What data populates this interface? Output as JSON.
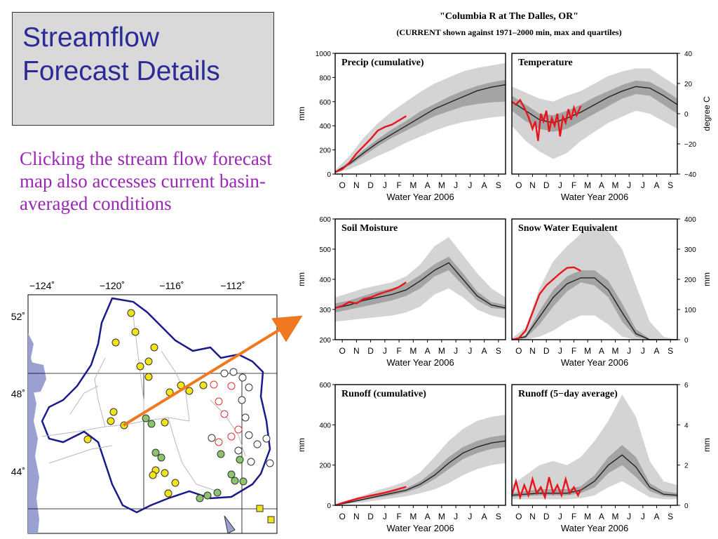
{
  "slide": {
    "title_line1": "Streamflow",
    "title_line2": "Forecast Details",
    "description": "Clicking the stream flow forecast map also accesses current basin-averaged conditions",
    "title_color": "#2b2b95",
    "description_color": "#9b26b6",
    "arrow_color": "#f07820"
  },
  "map": {
    "lon_labels": [
      "−124˚",
      "−120˚",
      "−116˚",
      "−112˚"
    ],
    "lat_labels": [
      "52˚",
      "48˚",
      "44˚"
    ],
    "marker_colors": {
      "yellow": "#f2e418",
      "green": "#8cc46c",
      "red_outline": "#e03030",
      "white": "#ffffff"
    },
    "water_color": "#9aa0d2"
  },
  "figure": {
    "title": "\"Columbia R at The Dalles, OR\"",
    "subtitle": "(CURRENT shown against 1971–2000 min, max and quartiles)",
    "xlabel": "Water Year 2006"
  },
  "chart_data": [
    {
      "type": "area",
      "title": "Precip (cumulative)",
      "ylabel": "mm",
      "ylim": [
        0,
        1000
      ],
      "yticks": [
        0,
        200,
        400,
        600,
        800,
        1000
      ],
      "x_categories": [
        "O",
        "N",
        "D",
        "J",
        "F",
        "M",
        "A",
        "M",
        "J",
        "J",
        "A",
        "S"
      ],
      "xlabel": "Water Year 2006",
      "x_month": [
        0,
        1,
        2,
        3,
        4,
        5,
        6,
        7,
        8,
        9,
        10,
        11,
        12
      ],
      "min": [
        10,
        40,
        90,
        150,
        200,
        260,
        310,
        360,
        400,
        430,
        450,
        470,
        480
      ],
      "q25": [
        15,
        70,
        150,
        230,
        300,
        360,
        420,
        480,
        520,
        560,
        580,
        595,
        600
      ],
      "median": [
        18,
        85,
        175,
        260,
        330,
        400,
        470,
        540,
        590,
        640,
        690,
        720,
        740
      ],
      "q75": [
        20,
        100,
        200,
        290,
        370,
        440,
        520,
        580,
        640,
        690,
        730,
        760,
        780
      ],
      "max": [
        30,
        150,
        300,
        420,
        520,
        600,
        680,
        750,
        800,
        850,
        880,
        900,
        920
      ],
      "current_x": [
        0,
        0.5,
        1,
        1.5,
        2,
        2.5,
        3,
        3.5,
        4,
        4.5,
        5
      ],
      "current": [
        15,
        40,
        95,
        170,
        230,
        290,
        360,
        390,
        410,
        445,
        480
      ]
    },
    {
      "type": "area",
      "title": "Temperature",
      "ylabel": "degree C",
      "ylim": [
        -40,
        40
      ],
      "yticks": [
        -40,
        -20,
        0,
        20,
        40
      ],
      "x_categories": [
        "O",
        "N",
        "D",
        "J",
        "F",
        "M",
        "A",
        "M",
        "J",
        "J",
        "A",
        "S"
      ],
      "xlabel": "Water Year 2006",
      "x_month": [
        0,
        1,
        2,
        3,
        4,
        5,
        6,
        7,
        8,
        9,
        10,
        11,
        12
      ],
      "min": [
        -8,
        -18,
        -25,
        -30,
        -26,
        -18,
        -12,
        -6,
        -2,
        2,
        0,
        -5,
        -10
      ],
      "q25": [
        2,
        -5,
        -10,
        -12,
        -10,
        -5,
        0,
        5,
        10,
        13,
        12,
        6,
        0
      ],
      "median": [
        8,
        2,
        -4,
        -6,
        -3,
        1,
        6,
        11,
        15,
        18,
        17,
        12,
        6
      ],
      "q75": [
        12,
        6,
        0,
        -1,
        2,
        6,
        11,
        15,
        19,
        22,
        21,
        16,
        10
      ],
      "max": [
        18,
        14,
        10,
        8,
        12,
        15,
        20,
        25,
        28,
        30,
        30,
        24,
        18
      ],
      "current_x": [
        0,
        0.3,
        0.6,
        0.9,
        1.2,
        1.5,
        1.7,
        1.9,
        2.1,
        2.3,
        2.5,
        2.7,
        2.9,
        3.1,
        3.3,
        3.5,
        3.7,
        3.9,
        4.1,
        4.3,
        4.5,
        4.7,
        5
      ],
      "current": [
        8,
        6,
        9,
        4,
        -2,
        -10,
        -5,
        -18,
        0,
        -5,
        2,
        -12,
        -3,
        -8,
        0,
        -15,
        -2,
        -6,
        3,
        -4,
        4,
        -1,
        5
      ]
    },
    {
      "type": "area",
      "title": "Soil Moisture",
      "ylabel": "mm",
      "ylim": [
        200,
        600
      ],
      "yticks": [
        200,
        300,
        400,
        500,
        600
      ],
      "x_categories": [
        "O",
        "N",
        "D",
        "J",
        "F",
        "M",
        "A",
        "M",
        "J",
        "J",
        "A",
        "S"
      ],
      "xlabel": "Water Year 2006",
      "x_month": [
        0,
        1,
        2,
        3,
        4,
        5,
        6,
        7,
        8,
        9,
        10,
        11,
        12
      ],
      "min": [
        260,
        265,
        270,
        275,
        280,
        290,
        310,
        350,
        370,
        340,
        300,
        280,
        270
      ],
      "q25": [
        290,
        300,
        310,
        320,
        330,
        345,
        370,
        410,
        430,
        380,
        330,
        305,
        300
      ],
      "median": [
        305,
        315,
        330,
        340,
        350,
        365,
        395,
        430,
        455,
        400,
        345,
        315,
        305
      ],
      "q75": [
        320,
        330,
        345,
        360,
        370,
        385,
        415,
        450,
        475,
        420,
        360,
        325,
        315
      ],
      "max": [
        340,
        355,
        370,
        380,
        390,
        410,
        450,
        510,
        540,
        480,
        420,
        370,
        340
      ],
      "current_x": [
        0,
        0.5,
        1,
        1.5,
        2,
        2.5,
        3,
        3.5,
        4,
        4.5,
        5
      ],
      "current": [
        305,
        312,
        325,
        320,
        335,
        340,
        350,
        358,
        365,
        375,
        390
      ]
    },
    {
      "type": "area",
      "title": "Snow Water Equivalent",
      "ylabel": "mm",
      "ylim": [
        0,
        400
      ],
      "yticks": [
        0,
        100,
        200,
        300,
        400
      ],
      "x_categories": [
        "O",
        "N",
        "D",
        "J",
        "F",
        "M",
        "A",
        "M",
        "J",
        "J",
        "A",
        "S"
      ],
      "xlabel": "Water Year 2006",
      "x_month": [
        0,
        1,
        2,
        3,
        4,
        5,
        6,
        7,
        8,
        9,
        10,
        11,
        12
      ],
      "min": [
        0,
        0,
        10,
        30,
        60,
        80,
        80,
        50,
        10,
        0,
        0,
        0,
        0
      ],
      "q25": [
        0,
        5,
        50,
        110,
        160,
        190,
        180,
        140,
        60,
        10,
        0,
        0,
        0
      ],
      "median": [
        0,
        10,
        75,
        140,
        185,
        205,
        205,
        165,
        90,
        20,
        0,
        0,
        0
      ],
      "q75": [
        0,
        15,
        95,
        165,
        210,
        230,
        230,
        195,
        120,
        35,
        2,
        0,
        0
      ],
      "max": [
        5,
        40,
        170,
        260,
        310,
        350,
        370,
        360,
        300,
        180,
        60,
        10,
        0
      ],
      "current_x": [
        0,
        0.5,
        1,
        1.5,
        2,
        2.5,
        3,
        3.5,
        4,
        4.5,
        5
      ],
      "current": [
        0,
        5,
        30,
        90,
        150,
        180,
        200,
        220,
        238,
        240,
        228
      ]
    },
    {
      "type": "area",
      "title": "Runoff (cumulative)",
      "ylabel": "mm",
      "ylim": [
        0,
        600
      ],
      "yticks": [
        0,
        200,
        400,
        600
      ],
      "x_categories": [
        "O",
        "N",
        "D",
        "J",
        "F",
        "M",
        "A",
        "M",
        "J",
        "J",
        "A",
        "S"
      ],
      "xlabel": "Water Year 2006",
      "x_month": [
        0,
        1,
        2,
        3,
        4,
        5,
        6,
        7,
        8,
        9,
        10,
        11,
        12
      ],
      "min": [
        0,
        8,
        15,
        25,
        35,
        45,
        60,
        80,
        110,
        150,
        180,
        200,
        210
      ],
      "q25": [
        0,
        12,
        25,
        38,
        50,
        65,
        90,
        130,
        180,
        230,
        260,
        280,
        290
      ],
      "median": [
        0,
        15,
        30,
        45,
        60,
        75,
        105,
        150,
        210,
        260,
        290,
        310,
        320
      ],
      "q75": [
        0,
        18,
        35,
        52,
        68,
        85,
        120,
        175,
        240,
        290,
        320,
        340,
        350
      ],
      "max": [
        0,
        25,
        50,
        75,
        95,
        120,
        165,
        240,
        320,
        380,
        420,
        440,
        450
      ],
      "current_x": [
        0,
        0.5,
        1,
        1.5,
        2,
        2.5,
        3,
        3.5,
        4,
        4.5,
        5
      ],
      "current": [
        0,
        12,
        22,
        32,
        40,
        48,
        55,
        63,
        72,
        82,
        92
      ]
    },
    {
      "type": "area",
      "title": "Runoff (5−day average)",
      "ylabel": "mm",
      "ylim": [
        0,
        6
      ],
      "yticks": [
        0,
        2,
        4,
        6
      ],
      "x_categories": [
        "O",
        "N",
        "D",
        "J",
        "F",
        "M",
        "A",
        "M",
        "J",
        "J",
        "A",
        "S"
      ],
      "xlabel": "Water Year 2006",
      "x_month": [
        0,
        1,
        2,
        3,
        4,
        5,
        6,
        7,
        8,
        9,
        10,
        11,
        12
      ],
      "min": [
        0.3,
        0.3,
        0.3,
        0.3,
        0.3,
        0.35,
        0.5,
        0.9,
        1.2,
        0.8,
        0.4,
        0.3,
        0.3
      ],
      "q25": [
        0.4,
        0.45,
        0.5,
        0.5,
        0.5,
        0.6,
        0.9,
        1.6,
        2.0,
        1.4,
        0.7,
        0.45,
        0.4
      ],
      "median": [
        0.5,
        0.55,
        0.6,
        0.6,
        0.6,
        0.75,
        1.2,
        2.0,
        2.5,
        1.9,
        0.9,
        0.55,
        0.5
      ],
      "q75": [
        0.6,
        0.7,
        0.8,
        0.8,
        0.8,
        0.95,
        1.5,
        2.4,
        3.0,
        2.4,
        1.1,
        0.7,
        0.6
      ],
      "max": [
        1.0,
        1.5,
        2.0,
        2.2,
        2.0,
        2.4,
        3.2,
        4.2,
        5.5,
        4.4,
        2.2,
        1.2,
        1.0
      ],
      "current_x": [
        0,
        0.3,
        0.6,
        0.9,
        1.2,
        1.5,
        1.8,
        2.1,
        2.4,
        2.7,
        3.0,
        3.3,
        3.6,
        3.9,
        4.2,
        4.5,
        4.8,
        5.0
      ],
      "current": [
        0.5,
        1.2,
        0.4,
        1.0,
        0.5,
        1.3,
        0.6,
        0.9,
        0.4,
        1.4,
        0.6,
        1.0,
        0.5,
        1.3,
        0.6,
        0.9,
        0.5,
        0.8
      ]
    }
  ]
}
